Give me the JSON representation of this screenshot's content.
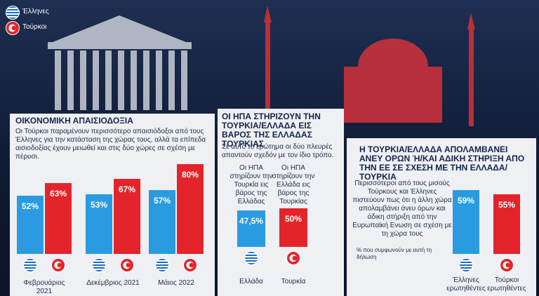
{
  "chart_data": [
    {
      "type": "bar",
      "title": "ΟΙΚΟΝΟΜΙΚΗ ΑΠΑΙΣΙΟΔΟΞΙΑ",
      "subtitle": "Οι Τούρκοι παραμένουν περισσότερο απαισιόδοξοι από τους Έλληνες για την κατάσταση της χώρας τους, αλλά τα επίπεδα αισιοδοξίας έχουν μειωθεί και στις δύο χώρες σε σχέση με πέρυσι.",
      "categories": [
        "Φεβρουάριος 2021",
        "Δεκέμβριος 2021",
        "Μάιος 2022"
      ],
      "series": [
        {
          "name": "Έλληνες",
          "color": "#2a9be0",
          "values": [
            52,
            53,
            57
          ],
          "value_labels": [
            "52%",
            "53%",
            "57%"
          ]
        },
        {
          "name": "Τούρκοι",
          "color": "#e3242b",
          "values": [
            63,
            67,
            80
          ],
          "value_labels": [
            "63%",
            "67%",
            "80%"
          ]
        }
      ]
    },
    {
      "type": "bar",
      "title": "ΟΙ ΗΠΑ ΣΤΗΡΙΖΟΥΝ ΤΗΝ ΤΟΥΡΚΙΑ/ΕΛΛΑΔΑ ΕΙΣ ΒΑΡΟΣ ΤΗΣ ΕΛΛΑΔΑΣ ΤΟΥΡΚΙΑΣ",
      "subtitle": "Σε αυτό το ερώτημα οι δύο πλευρές απαντούν σχεδόν με τον ίδιο τρόπο.",
      "categories": [
        "Ελλάδα",
        "Τουρκία"
      ],
      "bar_labels": [
        "Οι ΗΠΑ στηρίζουν την Τουρκία εις βάρος της Ελλάδας",
        "Οι ΗΠΑ στηρίζουν την Ελλάδα εις βάρος της Τουρκίας"
      ],
      "values": [
        47.5,
        50
      ],
      "value_labels": [
        "47,5%",
        "50%"
      ],
      "colors": [
        "#2a9be0",
        "#e3242b"
      ]
    },
    {
      "type": "bar",
      "title": "Η ΤΟΥΡΚΙΑ/ΕΛΛΑΔΑ ΑΠΟΛΑΜΒΑΝΕΙ ΑΝΕΥ ΟΡΩΝ Ή/ΚΑΙ ΑΔΙΚΗ ΣΤΗΡΙΞΗ ΑΠΟ ΤΗΝ ΕΕ ΣΕ ΣΧΕΣΗ ΜΕ ΤΗΝ ΕΛΛΑΔΑ/ΤΟΥΡΚΙΑ",
      "subtitle": "Περισσότεροι από τους μισούς Τούρκους και Έλληνες πιστεύουν πως ότι η άλλη χώρα απολαμβάνει άνευ όρων και άδικη στήριξη από την Ευρωπαϊκή Ενωση σε σχέση με τη χώρα τους",
      "note": "% που συμφωνούν με αυτή τη δήλωση",
      "categories": [
        "Έλληνες ερωτηθέντες",
        "Τούρκοι ερωτηθέντες"
      ],
      "values": [
        59,
        55
      ],
      "value_labels": [
        "59%",
        "55%"
      ],
      "colors": [
        "#2a9be0",
        "#e3242b"
      ]
    }
  ]
}
